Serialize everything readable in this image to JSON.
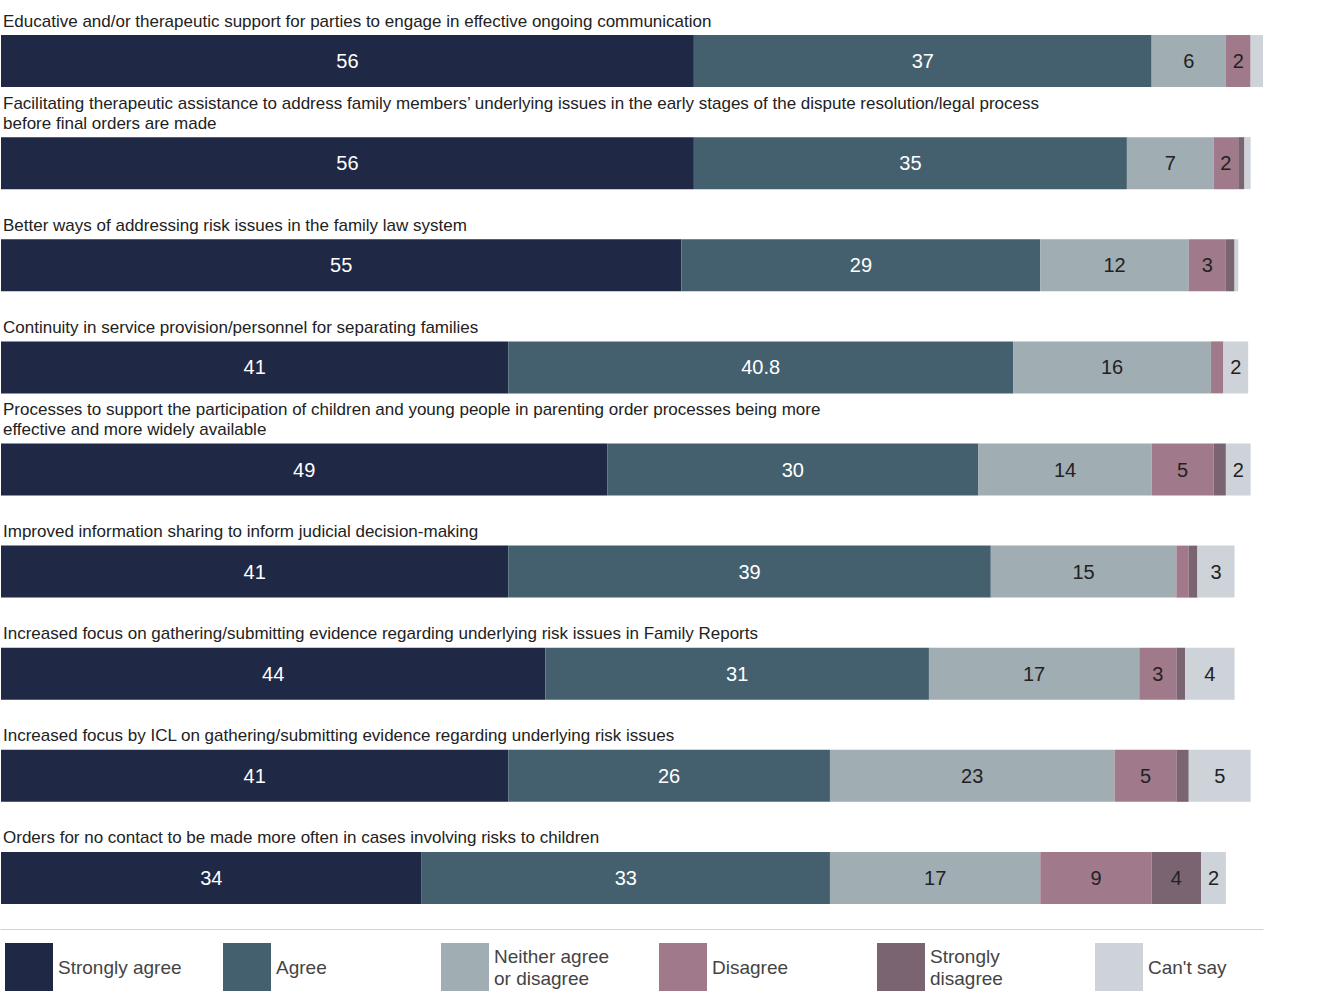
{
  "chart_data": {
    "type": "bar",
    "orientation": "horizontal",
    "stacked": true,
    "data_labels": true,
    "tick_labels": false,
    "grid": false,
    "legend": "bottom",
    "xlim": [
      0,
      102
    ],
    "categories": [
      "Educative and/or therapeutic support for parties to engage in effective ongoing communication",
      "Facilitating therapeutic assistance to address family members’ underlying issues in the early stages of the dispute resolution/legal process\nbefore final orders are made",
      "Better ways of addressing risk issues in the family law system",
      "Continuity in service provision/personnel for separating families",
      "Processes to support the participation of children and young people in parenting order processes being more\neffective and more widely available",
      "Improved information sharing to inform judicial decision-making",
      "Increased focus on gathering/submitting evidence regarding underlying risk issues in Family Reports",
      "Increased focus by ICL on gathering/submitting evidence regarding underlying risk issues",
      "Orders for no contact to be made more often in cases involving risks to children"
    ],
    "series": [
      {
        "name": "Strongly agree",
        "color": "#1f2845",
        "values": [
          56,
          56,
          55,
          41,
          49,
          41,
          44,
          41,
          34
        ]
      },
      {
        "name": "Agree",
        "color": "#44606e",
        "values": [
          37,
          35,
          29,
          40.8,
          30,
          39,
          31,
          26,
          33
        ]
      },
      {
        "name": "Neither agree or disagree",
        "color": "#a0adb3",
        "values": [
          6,
          7,
          12,
          16,
          14,
          15,
          17,
          23,
          17
        ]
      },
      {
        "name": "Disagree",
        "color": "#a07a8a",
        "values": [
          2,
          2,
          3,
          1,
          5,
          1,
          3,
          5,
          9
        ]
      },
      {
        "name": "Strongly disagree",
        "color": "#7a6472",
        "values": [
          0,
          0.5,
          0.7,
          0,
          1,
          0.7,
          0.7,
          1,
          4
        ]
      },
      {
        "name": "Can't say",
        "color": "#cdd3d9",
        "values": [
          1,
          0.5,
          0.3,
          2,
          2,
          3,
          4,
          5,
          2
        ]
      }
    ]
  }
}
